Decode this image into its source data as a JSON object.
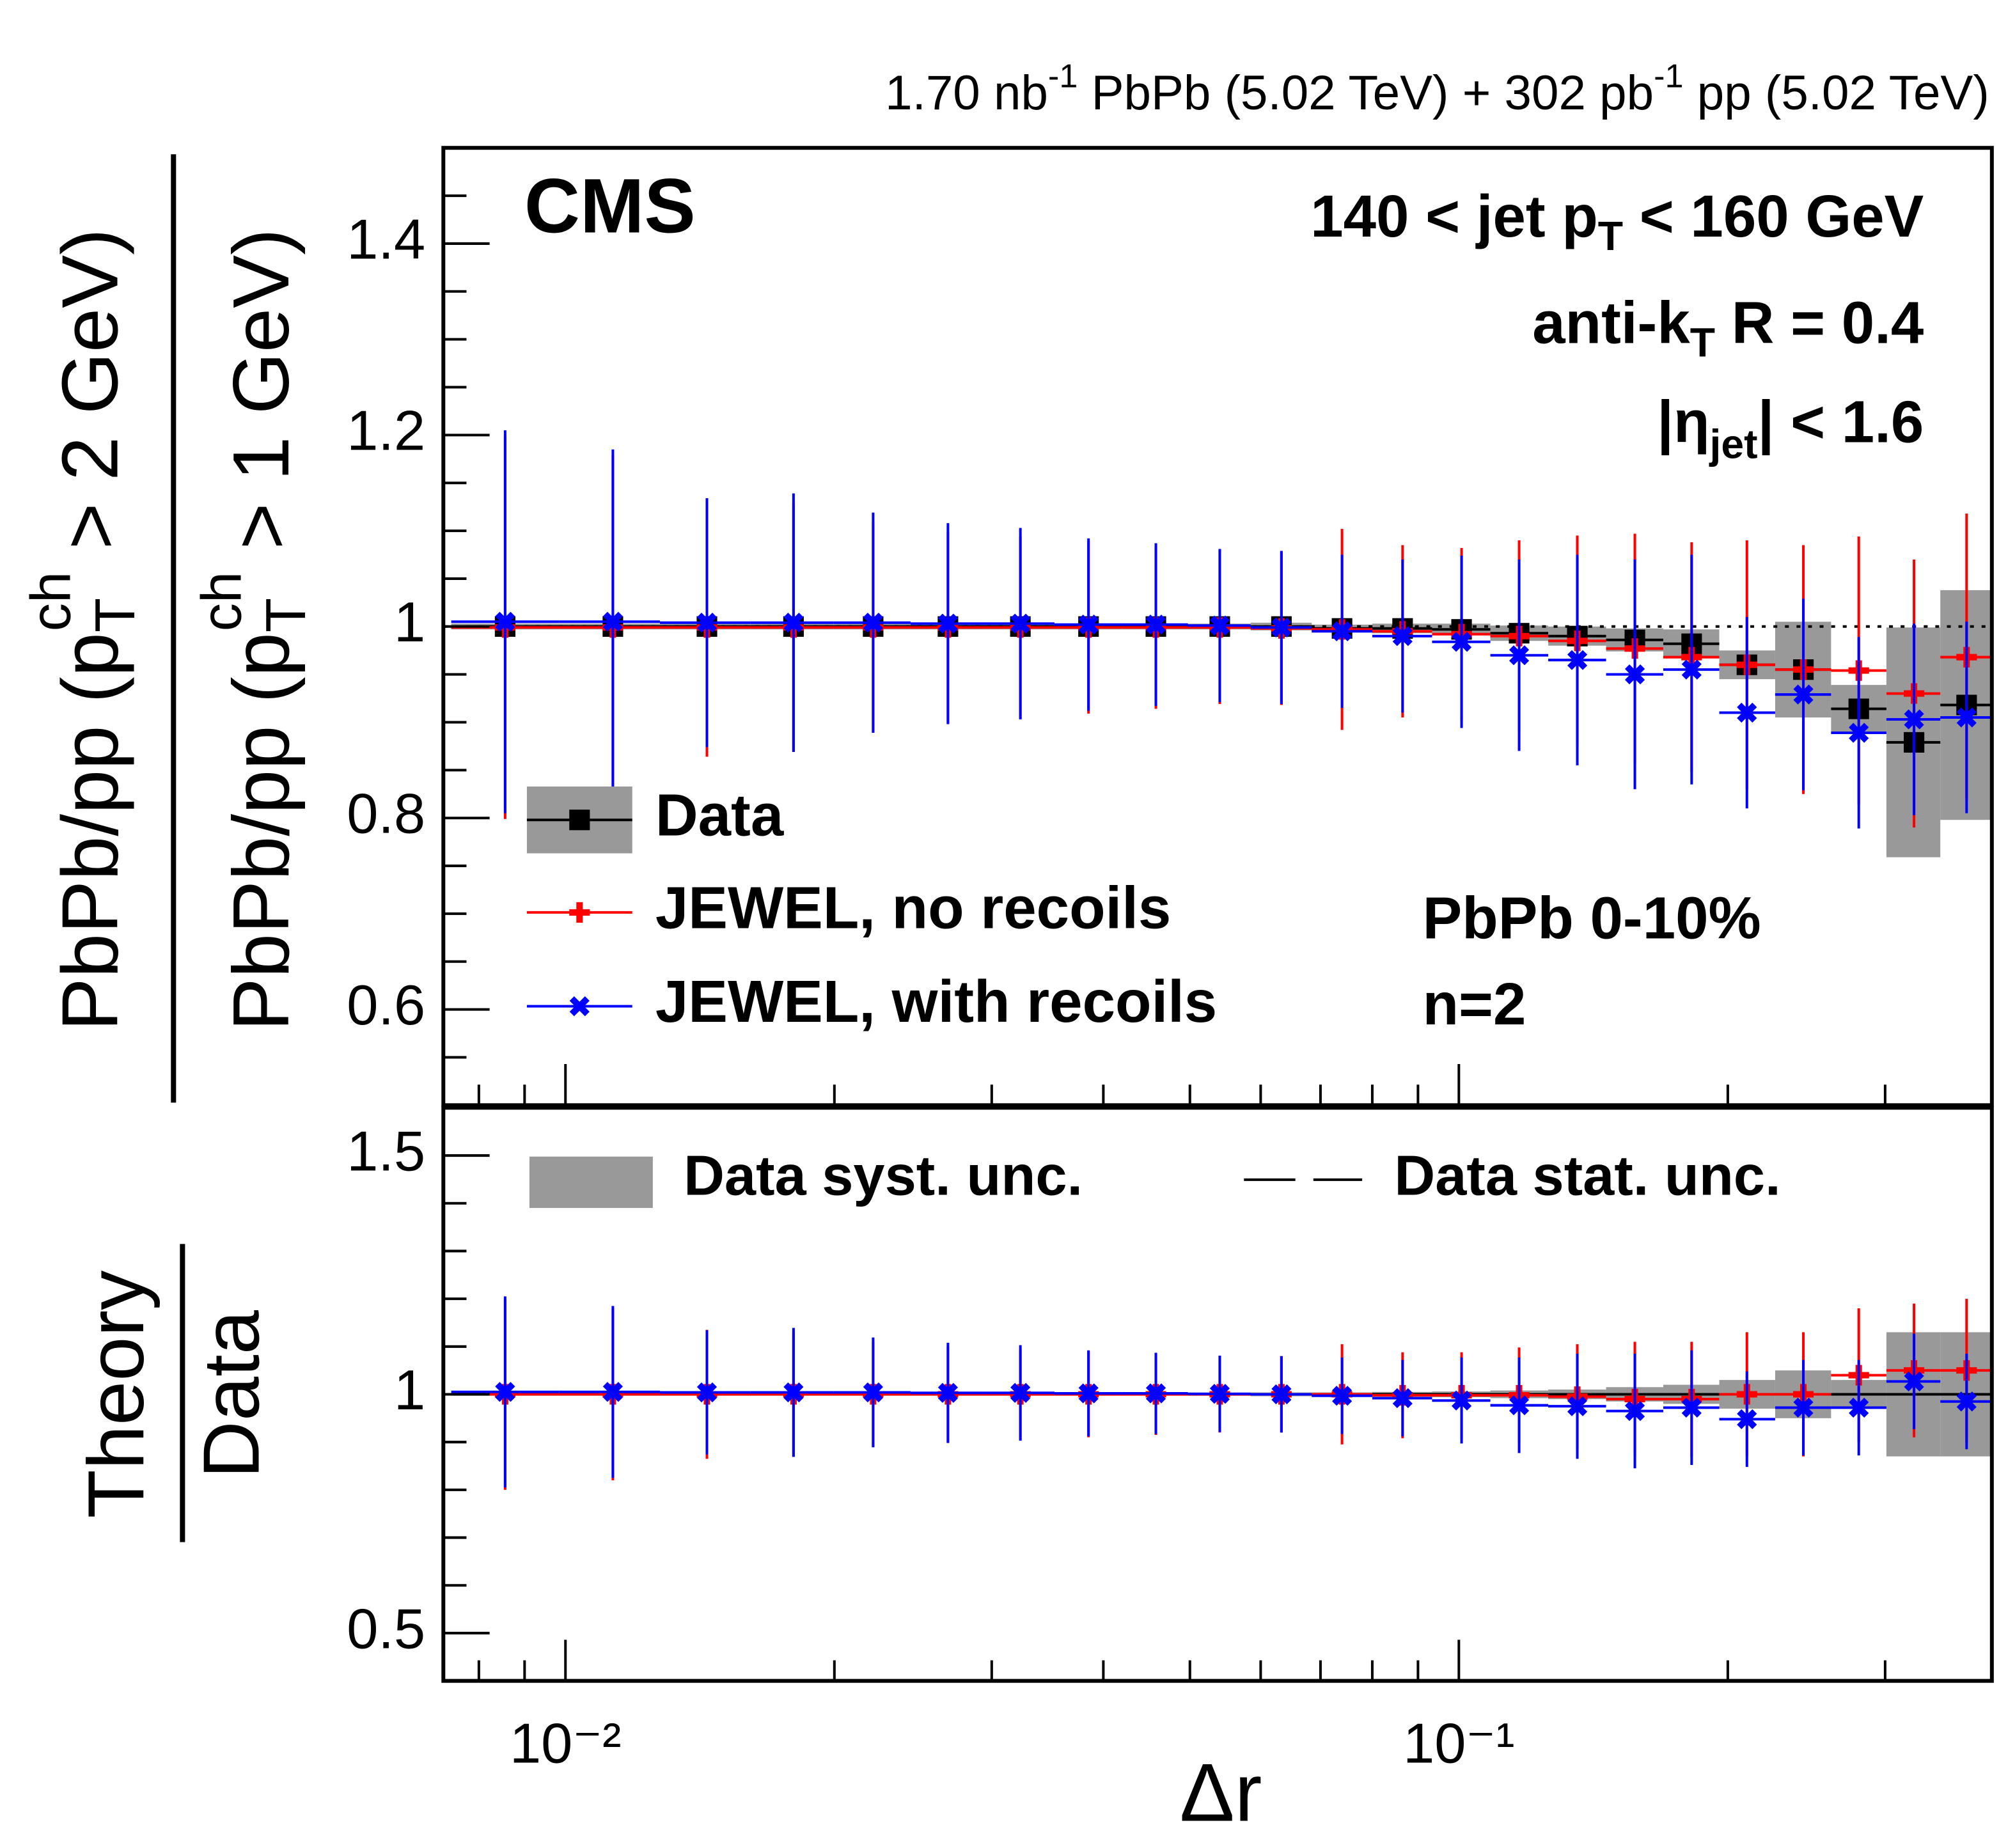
{
  "chart_data": [
    {
      "type": "scatter",
      "lumi": [
        "1.70 nb",
        "-1",
        " PbPb (5.02 TeV) + 302 pb",
        "-1",
        " pp (5.02 TeV)"
      ],
      "y_label_numerator": [
        "PbPb/pp (p",
        "T",
        "ch",
        " > 2 GeV)"
      ],
      "y_label_denominator": [
        "PbPb/pp (p",
        "T",
        "ch",
        " > 1 GeV)"
      ],
      "experiment": "CMS",
      "jet_pt": [
        "140 < jet p",
        "T",
        " < 160 GeV"
      ],
      "jet_algo": [
        "anti-k",
        "T",
        " R = 0.4"
      ],
      "eta": [
        "|η",
        "jet",
        "| < 1.6"
      ],
      "centrality": "PbPb 0-10%",
      "order": "n=2",
      "log_x": true,
      "xlim": [
        0.0073,
        0.395
      ],
      "xminorticks": [
        0.008,
        0.009,
        0.02,
        0.03,
        0.04,
        0.05,
        0.06,
        0.07,
        0.08,
        0.09,
        0.2,
        0.3
      ],
      "xticks": [
        {
          "value": 0.01,
          "label": "10⁻²"
        },
        {
          "value": 0.1,
          "label": "10⁻¹"
        }
      ],
      "ylim": [
        0.5,
        1.5
      ],
      "yticks": [
        0.6,
        0.8,
        1,
        1.2,
        1.4
      ],
      "yminorticks": [
        0.55,
        0.65,
        0.7,
        0.75,
        0.85,
        0.9,
        0.95,
        1.05,
        1.1,
        1.15,
        1.25,
        1.3,
        1.35,
        1.45
      ],
      "x": [
        0.00856,
        0.0113,
        0.0144,
        0.018,
        0.0221,
        0.0268,
        0.0323,
        0.0385,
        0.0458,
        0.054,
        0.0633,
        0.074,
        0.0865,
        0.1007,
        0.1168,
        0.1357,
        0.1574,
        0.1822,
        0.2101,
        0.243,
        0.2803,
        0.3232,
        0.3701
      ],
      "legend": "lower left",
      "series": [
        {
          "name": "Data",
          "color": "#000000",
          "marker": "square",
          "values": [
            1,
            1,
            1,
            1,
            1,
            1,
            1,
            1,
            1,
            1,
            1,
            0.998,
            0.998,
            0.997,
            0.993,
            0.99,
            0.986,
            0.982,
            0.96,
            0.955,
            0.914,
            0.879,
            0.918
          ],
          "syst": [
            0.003,
            0.003,
            0.003,
            0.003,
            0.003,
            0.003,
            0.003,
            0.003,
            0.003,
            0.003,
            0.004,
            0.004,
            0.005,
            0.006,
            0.008,
            0.01,
            0.012,
            0.015,
            0.015,
            0.05,
            0.025,
            0.12,
            0.12
          ]
        },
        {
          "name": "JEWEL, no recoils",
          "color": "#ff0000",
          "marker": "plus",
          "values": [
            0.999,
            0.999,
            0.999,
            0.999,
            0.999,
            0.999,
            0.999,
            0.999,
            0.999,
            0.999,
            0.998,
            0.997,
            0.995,
            0.992,
            0.99,
            0.985,
            0.977,
            0.968,
            0.96,
            0.955,
            0.954,
            0.93,
            0.968
          ],
          "errors": [
            0.2,
            0.18,
            0.135,
            0.13,
            0.11,
            0.1,
            0.095,
            0.09,
            0.085,
            0.08,
            0.08,
            0.105,
            0.09,
            0.09,
            0.1,
            0.11,
            0.12,
            0.12,
            0.13,
            0.13,
            0.14,
            0.14,
            0.15
          ]
        },
        {
          "name": "JEWEL, with recoils",
          "color": "#0000ff",
          "marker": "cross",
          "values": [
            1.005,
            1.005,
            1.004,
            1.004,
            1.004,
            1.003,
            1.003,
            1.002,
            1.002,
            1.001,
            0.999,
            0.995,
            0.99,
            0.984,
            0.97,
            0.965,
            0.95,
            0.955,
            0.91,
            0.929,
            0.889,
            0.903,
            0.905
          ],
          "errors": [
            0.2,
            0.18,
            0.13,
            0.135,
            0.115,
            0.105,
            0.1,
            0.09,
            0.085,
            0.08,
            0.08,
            0.08,
            0.08,
            0.09,
            0.1,
            0.11,
            0.12,
            0.12,
            0.1,
            0.1,
            0.1,
            0.1,
            0.1
          ]
        }
      ]
    },
    {
      "type": "scatter",
      "y_label": [
        "Theory",
        "Data"
      ],
      "x_label": "Δr",
      "syst_label": "Data syst. unc.",
      "stat_label": "Data stat. unc.",
      "log_x": true,
      "xlim": [
        0.0073,
        0.395
      ],
      "xminorticks": [
        0.008,
        0.009,
        0.02,
        0.03,
        0.04,
        0.05,
        0.06,
        0.07,
        0.08,
        0.09,
        0.2,
        0.3
      ],
      "xticks": [
        {
          "value": 0.01,
          "label": "10⁻²"
        },
        {
          "value": 0.1,
          "label": "10⁻¹"
        }
      ],
      "ylim": [
        0.4,
        1.6
      ],
      "yticks": [
        0.5,
        1,
        1.5
      ],
      "yminorticks": [
        0.6,
        0.7,
        0.8,
        0.9,
        1.1,
        1.2,
        1.3,
        1.4
      ],
      "x": [
        0.00856,
        0.0113,
        0.0144,
        0.018,
        0.0221,
        0.0268,
        0.0323,
        0.0385,
        0.0458,
        0.054,
        0.0633,
        0.074,
        0.0865,
        0.1007,
        0.1168,
        0.1357,
        0.1574,
        0.1822,
        0.2101,
        0.243,
        0.2803,
        0.3232,
        0.3701
      ],
      "syst": [
        0.003,
        0.003,
        0.003,
        0.003,
        0.003,
        0.003,
        0.003,
        0.003,
        0.003,
        0.003,
        0.004,
        0.004,
        0.005,
        0.006,
        0.008,
        0.01,
        0.015,
        0.02,
        0.03,
        0.05,
        0.03,
        0.13,
        0.13
      ],
      "series": [
        {
          "name": "JEWEL, no recoils",
          "color": "#ff0000",
          "marker": "plus",
          "values": [
            1,
            1,
            1,
            1,
            1,
            1,
            1,
            1,
            1,
            1,
            1,
            1,
            0.998,
            0.998,
            0.998,
            0.995,
            0.99,
            0.99,
            1,
            1,
            1.04,
            1.05,
            1.05
          ],
          "errors": [
            0.2,
            0.18,
            0.135,
            0.13,
            0.11,
            0.1,
            0.095,
            0.09,
            0.085,
            0.08,
            0.08,
            0.105,
            0.09,
            0.09,
            0.1,
            0.11,
            0.12,
            0.12,
            0.13,
            0.13,
            0.14,
            0.14,
            0.15
          ]
        },
        {
          "name": "JEWEL, with recoils",
          "color": "#0000ff",
          "marker": "cross",
          "values": [
            1.005,
            1.005,
            1.004,
            1.004,
            1.004,
            1.003,
            1.003,
            1.002,
            1.002,
            1.001,
            1,
            0.997,
            0.992,
            0.987,
            0.977,
            0.975,
            0.965,
            0.972,
            0.948,
            0.972,
            0.972,
            1.027,
            0.985
          ],
          "errors": [
            0.2,
            0.18,
            0.13,
            0.135,
            0.115,
            0.105,
            0.1,
            0.09,
            0.085,
            0.08,
            0.08,
            0.08,
            0.08,
            0.09,
            0.1,
            0.11,
            0.12,
            0.12,
            0.1,
            0.1,
            0.1,
            0.1,
            0.1
          ]
        }
      ]
    }
  ]
}
